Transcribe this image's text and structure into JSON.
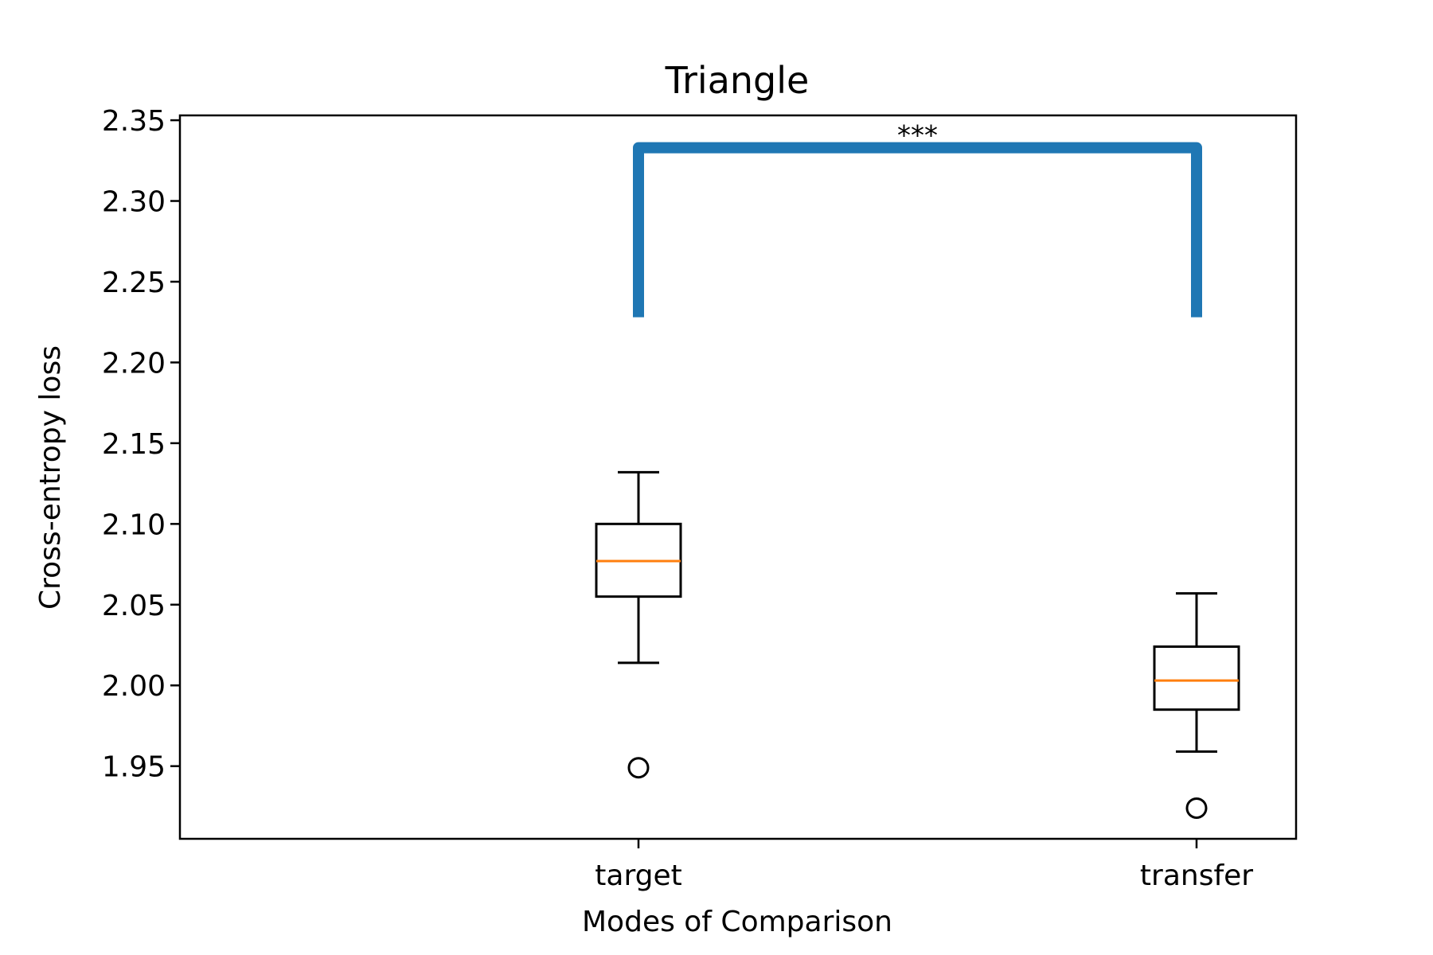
{
  "chart_data": {
    "type": "boxplot",
    "title": "Triangle",
    "xlabel": "Modes of Comparison",
    "ylabel": "Cross-entropy loss",
    "ylim": [
      1.905,
      2.353
    ],
    "yticks": [
      "1.95",
      "2.00",
      "2.05",
      "2.10",
      "2.15",
      "2.20",
      "2.25",
      "2.30",
      "2.35"
    ],
    "grid": false,
    "categories": [
      "target",
      "transfer"
    ],
    "boxes": [
      {
        "category": "target",
        "whisker_low": 2.014,
        "q1": 2.055,
        "median": 2.077,
        "q3": 2.1,
        "whisker_high": 2.132,
        "outliers": [
          1.949
        ]
      },
      {
        "category": "transfer",
        "whisker_low": 1.959,
        "q1": 1.985,
        "median": 2.003,
        "q3": 2.024,
        "whisker_high": 2.057,
        "outliers": [
          1.924
        ]
      }
    ],
    "significance": {
      "between": [
        "target",
        "transfer"
      ],
      "label": "***",
      "bar_y": 2.333,
      "leg_bottom_y": 2.228
    },
    "colors": {
      "box": "#000000",
      "median": "#ff7f0e",
      "bracket": "#1f77b4"
    }
  }
}
